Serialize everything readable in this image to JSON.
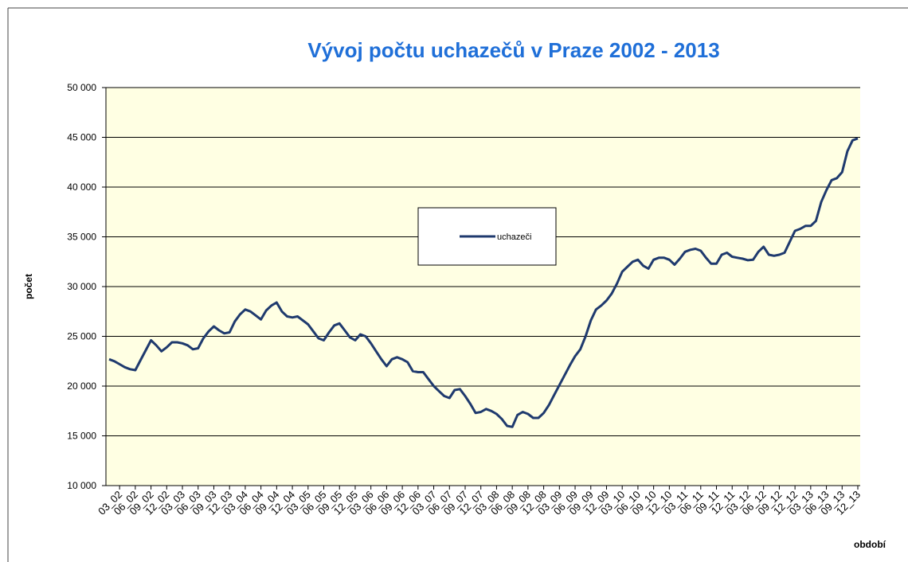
{
  "chart_data": {
    "type": "line",
    "title": "Vývoj počtu uchazečů v Praze 2002 - 2013",
    "ylabel": "počet",
    "xlabel": "období",
    "legend": "center",
    "grid": true,
    "ylim": [
      10000,
      50000
    ],
    "yticks": [
      {
        "value": 10000,
        "label": "10 000"
      },
      {
        "value": 15000,
        "label": "15 000"
      },
      {
        "value": 20000,
        "label": "20 000"
      },
      {
        "value": 25000,
        "label": "25 000"
      },
      {
        "value": 30000,
        "label": "30 000"
      },
      {
        "value": 35000,
        "label": "35 000"
      },
      {
        "value": 40000,
        "label": "40 000"
      },
      {
        "value": 45000,
        "label": "45 000"
      },
      {
        "value": 50000,
        "label": "50 000"
      }
    ],
    "categories": [
      null,
      null,
      "03_02",
      null,
      null,
      "06_02",
      null,
      null,
      "09_02",
      null,
      null,
      "12_02",
      null,
      null,
      "03_03",
      null,
      null,
      "06_03",
      null,
      null,
      "09_03",
      null,
      null,
      "12_03",
      null,
      null,
      "03_04",
      null,
      null,
      "06_04",
      null,
      null,
      "09_04",
      null,
      null,
      "12_04",
      null,
      null,
      "03_05",
      null,
      null,
      "06_05",
      null,
      null,
      "09_05",
      null,
      null,
      "12_05",
      null,
      null,
      "03_06",
      null,
      null,
      "06_06",
      null,
      null,
      "09_06",
      null,
      null,
      "12_06",
      null,
      null,
      "03_07",
      null,
      null,
      "06_07",
      null,
      null,
      "09_07",
      null,
      null,
      "12_07",
      null,
      null,
      "03_08",
      null,
      null,
      "06_08",
      null,
      null,
      "09_08",
      null,
      null,
      "12_08",
      null,
      null,
      "03_09",
      null,
      null,
      "06_09",
      null,
      null,
      "09_09",
      null,
      null,
      "12_09",
      null,
      null,
      "03_10",
      null,
      null,
      "06_10",
      null,
      null,
      "09_10",
      null,
      null,
      "12_10",
      null,
      null,
      "03_11",
      null,
      null,
      "06_11",
      null,
      null,
      "09_11",
      null,
      null,
      "12_11",
      null,
      null,
      "03_12",
      null,
      null,
      "06_12",
      null,
      null,
      "09_12",
      null,
      null,
      "12_12",
      null,
      null,
      "03_13",
      null,
      null,
      "06_13",
      null,
      null,
      "09_13",
      null,
      null,
      "12_13"
    ],
    "series": [
      {
        "name": "uchazeči",
        "color": "#1f3a6e",
        "values": [
          22700,
          22500,
          22200,
          21900,
          21700,
          21600,
          22600,
          23600,
          24600,
          24100,
          23500,
          23900,
          24400,
          24400,
          24300,
          24100,
          23700,
          23800,
          24800,
          25500,
          26000,
          25600,
          25300,
          25400,
          26500,
          27200,
          27700,
          27500,
          27100,
          26700,
          27600,
          28100,
          28400,
          27500,
          27000,
          26900,
          27000,
          26600,
          26200,
          25500,
          24800,
          24600,
          25400,
          26100,
          26300,
          25600,
          24900,
          24600,
          25200,
          25000,
          24300,
          23500,
          22700,
          22000,
          22700,
          22900,
          22700,
          22400,
          21500,
          21400,
          21400,
          20700,
          20000,
          19500,
          19000,
          18800,
          19600,
          19700,
          19000,
          18200,
          17300,
          17400,
          17700,
          17500,
          17200,
          16700,
          16000,
          15900,
          17100,
          17400,
          17200,
          16800,
          16800,
          17300,
          18100,
          19100,
          20100,
          21100,
          22100,
          23000,
          23700,
          25000,
          26600,
          27700,
          28100,
          28600,
          29300,
          30300,
          31500,
          32000,
          32500,
          32700,
          32100,
          31800,
          32700,
          32900,
          32900,
          32700,
          32200,
          32800,
          33500,
          33700,
          33800,
          33600,
          32900,
          32300,
          32300,
          33200,
          33400,
          33000,
          32900,
          32800,
          32650,
          32700,
          33500,
          34000,
          33200,
          33100,
          33200,
          33400,
          34500,
          35600,
          35800,
          36100,
          36100,
          36600,
          38500,
          39700,
          40700,
          40900,
          41500,
          43600,
          44700,
          44900
        ]
      }
    ]
  }
}
